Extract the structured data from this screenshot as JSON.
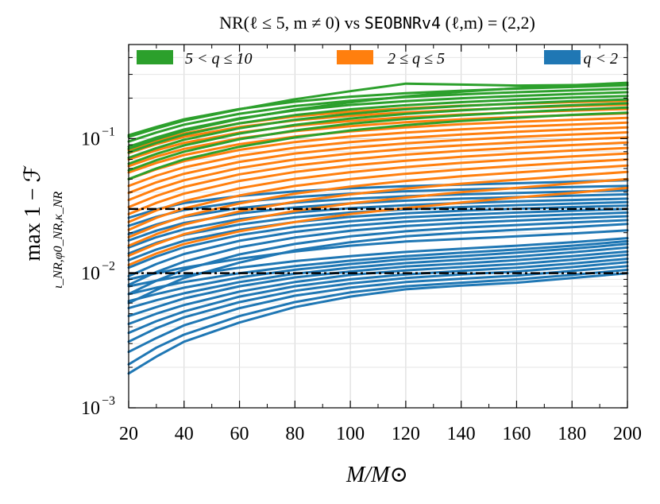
{
  "chart_data": {
    "type": "line",
    "title": "NR(ℓ ≤ 5, m ≠ 0) vs SEOBNRv4 (ℓ,m) = (2,2)",
    "title_parts": {
      "prefix": "NR(ℓ ≤ 5, m ≠ 0) vs ",
      "model": "SEOBNRv4",
      "suffix": " (ℓ,m) = (2,2)"
    },
    "xlabel": "M/M⊙",
    "ylabel": "max 1 − ℱ",
    "ylabel_parts": {
      "main": "max   1 − ℱ",
      "subscript": "ι_NR,φ0_NR,κ_NR"
    },
    "x_scale": "linear",
    "y_scale": "log",
    "xlim": [
      20,
      200
    ],
    "ylim": [
      0.001,
      0.5
    ],
    "x_ticks": [
      20,
      40,
      60,
      80,
      100,
      120,
      140,
      160,
      180,
      200
    ],
    "x_tick_labels": [
      "20",
      "40",
      "60",
      "80",
      "100",
      "120",
      "140",
      "160",
      "180",
      "200"
    ],
    "y_ticks": [
      0.001,
      0.01,
      0.1
    ],
    "y_tick_labels": [
      {
        "base": "10",
        "exp": "−3"
      },
      {
        "base": "10",
        "exp": "−2"
      },
      {
        "base": "10",
        "exp": "−1"
      }
    ],
    "grid": true,
    "legend_placement": "top",
    "reference_lines": [
      0.03,
      0.01
    ],
    "x": [
      20,
      30,
      40,
      60,
      80,
      100,
      120,
      140,
      160,
      180,
      200
    ],
    "groups": [
      {
        "name": "q < 2",
        "color": "#1f77b4",
        "series": [
          {
            "values": [
              0.0018,
              0.0024,
              0.0031,
              0.0043,
              0.0056,
              0.0067,
              0.0076,
              0.0081,
              0.0085,
              0.0092,
              0.01
            ]
          },
          {
            "values": [
              0.0021,
              0.0028,
              0.0035,
              0.0048,
              0.0061,
              0.0072,
              0.008,
              0.0085,
              0.009,
              0.0097,
              0.0106
            ]
          },
          {
            "values": [
              0.0026,
              0.0033,
              0.0041,
              0.0055,
              0.0068,
              0.0078,
              0.0086,
              0.0091,
              0.0096,
              0.0104,
              0.0113
            ]
          },
          {
            "values": [
              0.0031,
              0.0039,
              0.0047,
              0.0061,
              0.0074,
              0.0084,
              0.0092,
              0.0098,
              0.0103,
              0.0111,
              0.0121
            ]
          },
          {
            "values": [
              0.0036,
              0.0044,
              0.0052,
              0.0067,
              0.008,
              0.009,
              0.0098,
              0.0104,
              0.011,
              0.0118,
              0.0128
            ]
          },
          {
            "values": [
              0.0042,
              0.005,
              0.0058,
              0.0073,
              0.0086,
              0.0097,
              0.0105,
              0.0111,
              0.0117,
              0.0126,
              0.0137
            ]
          },
          {
            "values": [
              0.0048,
              0.0056,
              0.0065,
              0.008,
              0.0093,
              0.0103,
              0.0112,
              0.0118,
              0.0125,
              0.0134,
              0.0145
            ]
          },
          {
            "values": [
              0.0055,
              0.0063,
              0.0071,
              0.0086,
              0.0099,
              0.011,
              0.0119,
              0.0126,
              0.0133,
              0.0143,
              0.0155
            ]
          },
          {
            "values": [
              0.0062,
              0.007,
              0.0078,
              0.0093,
              0.0106,
              0.0117,
              0.0127,
              0.0134,
              0.0142,
              0.0152,
              0.0165
            ]
          },
          {
            "values": [
              0.007,
              0.0078,
              0.0086,
              0.01,
              0.0113,
              0.0124,
              0.0134,
              0.0142,
              0.015,
              0.016,
              0.0173
            ]
          },
          {
            "values": [
              0.008,
              0.0088,
              0.0096,
              0.011,
              0.0123,
              0.0134,
              0.0144,
              0.0152,
              0.016,
              0.017,
              0.0182
            ]
          },
          {
            "values": [
              0.009,
              0.01,
              0.011,
              0.0128,
              0.0145,
              0.016,
              0.0172,
              0.018,
              0.0188,
              0.0197,
              0.0208
            ]
          },
          {
            "values": [
              0.006,
              0.0075,
              0.0092,
              0.012,
              0.0148,
              0.017,
              0.0188,
              0.02,
              0.021,
              0.022,
              0.0232
            ]
          },
          {
            "values": [
              0.007,
              0.0088,
              0.0106,
              0.0138,
              0.0165,
              0.0188,
              0.0205,
              0.0218,
              0.0228,
              0.0238,
              0.0248
            ]
          },
          {
            "values": [
              0.0082,
              0.0102,
              0.0122,
              0.0156,
              0.0184,
              0.0207,
              0.0224,
              0.0236,
              0.0246,
              0.0256,
              0.0265
            ]
          },
          {
            "values": [
              0.0095,
              0.0117,
              0.0139,
              0.0174,
              0.0203,
              0.0225,
              0.0242,
              0.0254,
              0.0264,
              0.0273,
              0.0282
            ]
          },
          {
            "values": [
              0.011,
              0.0133,
              0.0156,
              0.0192,
              0.0221,
              0.0243,
              0.026,
              0.0272,
              0.0282,
              0.0291,
              0.03
            ]
          },
          {
            "values": [
              0.0125,
              0.015,
              0.0174,
              0.021,
              0.024,
              0.0262,
              0.0279,
              0.0291,
              0.0301,
              0.031,
              0.0318
            ]
          },
          {
            "values": [
              0.014,
              0.0168,
              0.0193,
              0.023,
              0.026,
              0.0282,
              0.0298,
              0.031,
              0.032,
              0.0329,
              0.0337
            ]
          },
          {
            "values": [
              0.0155,
              0.0185,
              0.0212,
              0.0252,
              0.0282,
              0.0304,
              0.032,
              0.0332,
              0.0342,
              0.035,
              0.0358
            ]
          },
          {
            "values": [
              0.0175,
              0.0207,
              0.0236,
              0.0278,
              0.0308,
              0.033,
              0.0346,
              0.0358,
              0.0368,
              0.0377,
              0.0385
            ]
          },
          {
            "values": [
              0.0195,
              0.023,
              0.0262,
              0.0305,
              0.0335,
              0.0357,
              0.0373,
              0.0385,
              0.0395,
              0.0404,
              0.0412
            ]
          },
          {
            "values": [
              0.0225,
              0.0262,
              0.0295,
              0.0338,
              0.0368,
              0.039,
              0.0406,
              0.0418,
              0.0428,
              0.0437,
              0.0445
            ]
          },
          {
            "values": [
              0.0258,
              0.0298,
              0.0332,
              0.0375,
              0.0405,
              0.0427,
              0.0443,
              0.0455,
              0.0466,
              0.0478,
              0.049
            ]
          }
        ]
      },
      {
        "name": "2 ≤ q ≤ 5",
        "color": "#ff7f0e",
        "series": [
          {
            "values": [
              0.0115,
              0.014,
              0.0165,
              0.0205,
              0.024,
              0.0275,
              0.0305,
              0.0335,
              0.0365,
              0.0395,
              0.043
            ]
          },
          {
            "values": [
              0.0135,
              0.0165,
              0.0195,
              0.0245,
              0.029,
              0.033,
              0.0365,
              0.04,
              0.043,
              0.0465,
              0.05
            ]
          },
          {
            "values": [
              0.016,
              0.0195,
              0.023,
              0.0288,
              0.034,
              0.0385,
              0.0425,
              0.0462,
              0.0495,
              0.053,
              0.0565
            ]
          },
          {
            "values": [
              0.0185,
              0.0225,
              0.0265,
              0.033,
              0.039,
              0.044,
              0.0485,
              0.0525,
              0.056,
              0.0595,
              0.063
            ]
          },
          {
            "values": [
              0.021,
              0.0258,
              0.0303,
              0.0378,
              0.0445,
              0.05,
              0.0548,
              0.059,
              0.0628,
              0.0665,
              0.07
            ]
          },
          {
            "values": [
              0.024,
              0.0293,
              0.0343,
              0.0428,
              0.0502,
              0.0563,
              0.0615,
              0.066,
              0.07,
              0.0738,
              0.0775
            ]
          },
          {
            "values": [
              0.0275,
              0.0333,
              0.039,
              0.0485,
              0.0565,
              0.063,
              0.0685,
              0.0733,
              0.0775,
              0.0815,
              0.0852
            ]
          },
          {
            "values": [
              0.031,
              0.0375,
              0.0438,
              0.0543,
              0.063,
              0.07,
              0.076,
              0.081,
              0.0855,
              0.0895,
              0.0935
            ]
          },
          {
            "values": [
              0.035,
              0.0422,
              0.049,
              0.0605,
              0.07,
              0.0775,
              0.0838,
              0.089,
              0.0938,
              0.098,
              0.102
            ]
          },
          {
            "values": [
              0.0395,
              0.0473,
              0.0548,
              0.0672,
              0.0775,
              0.0855,
              0.0922,
              0.0978,
              0.1028,
              0.1072,
              0.1112
            ]
          },
          {
            "values": [
              0.0445,
              0.053,
              0.0612,
              0.0745,
              0.0855,
              0.0942,
              0.1012,
              0.1072,
              0.1123,
              0.1168,
              0.121
            ]
          },
          {
            "values": [
              0.05,
              0.0592,
              0.068,
              0.0825,
              0.0942,
              0.1035,
              0.111,
              0.1172,
              0.1225,
              0.1272,
              0.1315
            ]
          },
          {
            "values": [
              0.056,
              0.066,
              0.0755,
              0.091,
              0.1035,
              0.1133,
              0.1212,
              0.1278,
              0.1333,
              0.138,
              0.1425
            ]
          },
          {
            "values": [
              0.0625,
              0.0735,
              0.0838,
              0.1005,
              0.1135,
              0.1238,
              0.1322,
              0.139,
              0.1446,
              0.1495,
              0.154
            ]
          },
          {
            "values": [
              0.07,
              0.0818,
              0.093,
              0.1108,
              0.1245,
              0.1352,
              0.144,
              0.1508,
              0.1565,
              0.1615,
              0.166
            ]
          },
          {
            "values": [
              0.078,
              0.091,
              0.103,
              0.122,
              0.1365,
              0.1478,
              0.1565,
              0.1635,
              0.1692,
              0.1742,
              0.1788
            ]
          },
          {
            "values": [
              0.082,
              0.096,
              0.109,
              0.13,
              0.146,
              0.1585,
              0.168,
              0.1755,
              0.1815,
              0.1865,
              0.191
            ]
          }
        ]
      },
      {
        "name": "5 < q ≤ 10",
        "color": "#2ca02c",
        "series": [
          {
            "values": [
              0.05,
              0.06,
              0.07,
              0.087,
              0.102,
              0.115,
              0.126,
              0.135,
              0.143,
              0.15,
              0.156
            ]
          },
          {
            "values": [
              0.058,
              0.069,
              0.08,
              0.099,
              0.115,
              0.129,
              0.14,
              0.149,
              0.157,
              0.164,
              0.17
            ]
          },
          {
            "values": [
              0.065,
              0.077,
              0.089,
              0.109,
              0.1265,
              0.141,
              0.1525,
              0.162,
              0.17,
              0.177,
              0.183
            ]
          },
          {
            "values": [
              0.072,
              0.085,
              0.098,
              0.1195,
              0.138,
              0.153,
              0.165,
              0.1745,
              0.1825,
              0.1895,
              0.1955
            ]
          },
          {
            "values": [
              0.079,
              0.093,
              0.107,
              0.13,
              0.1495,
              0.165,
              0.177,
              0.1865,
              0.1945,
              0.2015,
              0.2075
            ]
          },
          {
            "values": [
              0.087,
              0.102,
              0.117,
              0.1415,
              0.162,
              0.178,
              0.19,
              0.1995,
              0.2075,
              0.2145,
              0.221
            ]
          },
          {
            "values": [
              0.095,
              0.111,
              0.127,
              0.153,
              0.1745,
              0.191,
              0.2035,
              0.213,
              0.221,
              0.228,
              0.235
            ]
          },
          {
            "values": [
              0.106,
              0.122,
              0.139,
              0.166,
              0.188,
              0.205,
              0.2175,
              0.227,
              0.235,
              0.242,
              0.249
            ]
          },
          {
            "values": [
              0.103,
              0.119,
              0.136,
              0.165,
              0.196,
              0.225,
              0.256,
              0.252,
              0.248,
              0.25,
              0.252
            ]
          },
          {
            "values": [
              0.084,
              0.099,
              0.114,
              0.14,
              0.164,
              0.186,
              0.206,
              0.223,
              0.237,
              0.249,
              0.26
            ]
          }
        ]
      }
    ]
  }
}
